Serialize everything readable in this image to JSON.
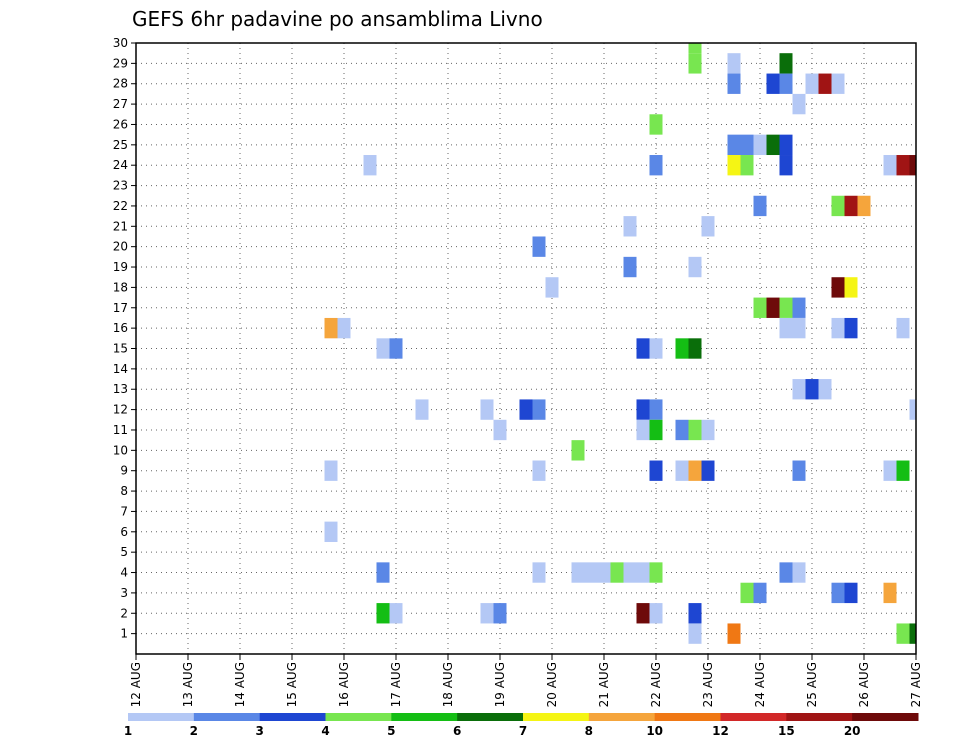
{
  "chart_data": {
    "type": "heatmap",
    "title": "GEFS 6hr padavine po ansamblima Livno",
    "xlabel": "",
    "ylabel": "",
    "x_ticks": [
      "12 AUG",
      "13 AUG",
      "14 AUG",
      "15 AUG",
      "16 AUG",
      "17 AUG",
      "18 AUG",
      "19 AUG",
      "20 AUG",
      "21 AUG",
      "22 AUG",
      "23 AUG",
      "24 AUG",
      "25 AUG",
      "26 AUG",
      "27 AUG"
    ],
    "y_ticks": [
      1,
      2,
      3,
      4,
      5,
      6,
      7,
      8,
      9,
      10,
      11,
      12,
      13,
      14,
      15,
      16,
      17,
      18,
      19,
      20,
      21,
      22,
      23,
      24,
      25,
      26,
      27,
      28,
      29,
      30
    ],
    "xlim": [
      0,
      15
    ],
    "ylim": [
      0,
      30
    ],
    "grid": true,
    "legend": {
      "placement": "bottom",
      "labels": [
        "1",
        "2",
        "3",
        "4",
        "5",
        "6",
        "7",
        "8",
        "10",
        "12",
        "15",
        "20"
      ],
      "colors": [
        "#b4c8f5",
        "#5a87e6",
        "#1e46d2",
        "#78e650",
        "#14be14",
        "#0a6e0a",
        "#f5f514",
        "#f5a53c",
        "#f07814",
        "#d22828",
        "#a01414",
        "#6e0a0a"
      ]
    },
    "cells": [
      {
        "t": 10.75,
        "m": 30,
        "v": 4
      },
      {
        "t": 10.75,
        "m": 29,
        "v": 4
      },
      {
        "t": 11.5,
        "m": 29,
        "v": 1
      },
      {
        "t": 12.5,
        "m": 29,
        "v": 6
      },
      {
        "t": 11.5,
        "m": 28,
        "v": 2
      },
      {
        "t": 12.25,
        "m": 28,
        "v": 3
      },
      {
        "t": 12.5,
        "m": 28,
        "v": 2
      },
      {
        "t": 13.0,
        "m": 28,
        "v": 1
      },
      {
        "t": 13.25,
        "m": 28,
        "v": 15
      },
      {
        "t": 13.5,
        "m": 28,
        "v": 1
      },
      {
        "t": 12.75,
        "m": 27,
        "v": 1
      },
      {
        "t": 10.0,
        "m": 26,
        "v": 4
      },
      {
        "t": 11.5,
        "m": 25,
        "v": 2
      },
      {
        "t": 11.75,
        "m": 25,
        "v": 2
      },
      {
        "t": 12.0,
        "m": 25,
        "v": 1
      },
      {
        "t": 12.25,
        "m": 25,
        "v": 6
      },
      {
        "t": 12.5,
        "m": 25,
        "v": 3
      },
      {
        "t": 4.5,
        "m": 24,
        "v": 1
      },
      {
        "t": 10.0,
        "m": 24,
        "v": 2
      },
      {
        "t": 11.5,
        "m": 24,
        "v": 7
      },
      {
        "t": 11.75,
        "m": 24,
        "v": 4
      },
      {
        "t": 12.5,
        "m": 24,
        "v": 3
      },
      {
        "t": 14.5,
        "m": 24,
        "v": 1
      },
      {
        "t": 14.75,
        "m": 24,
        "v": 15
      },
      {
        "t": 15.0,
        "m": 24,
        "v": 20
      },
      {
        "t": 12.0,
        "m": 22,
        "v": 2
      },
      {
        "t": 13.5,
        "m": 22,
        "v": 4
      },
      {
        "t": 13.75,
        "m": 22,
        "v": 15
      },
      {
        "t": 14.0,
        "m": 22,
        "v": 8
      },
      {
        "t": 9.5,
        "m": 21,
        "v": 1
      },
      {
        "t": 11.0,
        "m": 21,
        "v": 1
      },
      {
        "t": 7.75,
        "m": 20,
        "v": 2
      },
      {
        "t": 9.5,
        "m": 19,
        "v": 2
      },
      {
        "t": 10.75,
        "m": 19,
        "v": 1
      },
      {
        "t": 8.0,
        "m": 18,
        "v": 1
      },
      {
        "t": 13.5,
        "m": 18,
        "v": 20
      },
      {
        "t": 13.75,
        "m": 18,
        "v": 7
      },
      {
        "t": 12.0,
        "m": 17,
        "v": 4
      },
      {
        "t": 12.25,
        "m": 17,
        "v": 20
      },
      {
        "t": 12.5,
        "m": 17,
        "v": 4
      },
      {
        "t": 12.75,
        "m": 17,
        "v": 2
      },
      {
        "t": 3.75,
        "m": 16,
        "v": 8
      },
      {
        "t": 4.0,
        "m": 16,
        "v": 1
      },
      {
        "t": 12.5,
        "m": 16,
        "v": 1
      },
      {
        "t": 12.75,
        "m": 16,
        "v": 1
      },
      {
        "t": 13.5,
        "m": 16,
        "v": 1
      },
      {
        "t": 13.75,
        "m": 16,
        "v": 3
      },
      {
        "t": 14.75,
        "m": 16,
        "v": 1
      },
      {
        "t": 4.75,
        "m": 15,
        "v": 1
      },
      {
        "t": 5.0,
        "m": 15,
        "v": 2
      },
      {
        "t": 9.75,
        "m": 15,
        "v": 3
      },
      {
        "t": 10.0,
        "m": 15,
        "v": 1
      },
      {
        "t": 10.5,
        "m": 15,
        "v": 5
      },
      {
        "t": 10.75,
        "m": 15,
        "v": 6
      },
      {
        "t": 12.75,
        "m": 13,
        "v": 1
      },
      {
        "t": 13.0,
        "m": 13,
        "v": 3
      },
      {
        "t": 13.25,
        "m": 13,
        "v": 1
      },
      {
        "t": 5.5,
        "m": 12,
        "v": 1
      },
      {
        "t": 6.75,
        "m": 12,
        "v": 1
      },
      {
        "t": 7.5,
        "m": 12,
        "v": 3
      },
      {
        "t": 7.75,
        "m": 12,
        "v": 2
      },
      {
        "t": 9.75,
        "m": 12,
        "v": 3
      },
      {
        "t": 10.0,
        "m": 12,
        "v": 2
      },
      {
        "t": 15.0,
        "m": 12,
        "v": 1
      },
      {
        "t": 7.0,
        "m": 11,
        "v": 1
      },
      {
        "t": 9.75,
        "m": 11,
        "v": 1
      },
      {
        "t": 10.0,
        "m": 11,
        "v": 5
      },
      {
        "t": 10.5,
        "m": 11,
        "v": 2
      },
      {
        "t": 10.75,
        "m": 11,
        "v": 4
      },
      {
        "t": 11.0,
        "m": 11,
        "v": 1
      },
      {
        "t": 8.5,
        "m": 10,
        "v": 4
      },
      {
        "t": 3.75,
        "m": 9,
        "v": 1
      },
      {
        "t": 7.75,
        "m": 9,
        "v": 1
      },
      {
        "t": 10.0,
        "m": 9,
        "v": 3
      },
      {
        "t": 10.5,
        "m": 9,
        "v": 1
      },
      {
        "t": 10.75,
        "m": 9,
        "v": 8
      },
      {
        "t": 11.0,
        "m": 9,
        "v": 3
      },
      {
        "t": 12.75,
        "m": 9,
        "v": 2
      },
      {
        "t": 14.5,
        "m": 9,
        "v": 1
      },
      {
        "t": 14.75,
        "m": 9,
        "v": 5
      },
      {
        "t": 3.75,
        "m": 6,
        "v": 1
      },
      {
        "t": 4.75,
        "m": 4,
        "v": 2
      },
      {
        "t": 7.75,
        "m": 4,
        "v": 1
      },
      {
        "t": 8.5,
        "m": 4,
        "v": 1
      },
      {
        "t": 8.75,
        "m": 4,
        "v": 1
      },
      {
        "t": 9.0,
        "m": 4,
        "v": 1
      },
      {
        "t": 9.25,
        "m": 4,
        "v": 4
      },
      {
        "t": 9.5,
        "m": 4,
        "v": 1
      },
      {
        "t": 9.75,
        "m": 4,
        "v": 1
      },
      {
        "t": 10.0,
        "m": 4,
        "v": 4
      },
      {
        "t": 12.5,
        "m": 4,
        "v": 2
      },
      {
        "t": 12.75,
        "m": 4,
        "v": 1
      },
      {
        "t": 11.75,
        "m": 3,
        "v": 4
      },
      {
        "t": 12.0,
        "m": 3,
        "v": 2
      },
      {
        "t": 13.5,
        "m": 3,
        "v": 2
      },
      {
        "t": 13.75,
        "m": 3,
        "v": 3
      },
      {
        "t": 14.5,
        "m": 3,
        "v": 8
      },
      {
        "t": 4.75,
        "m": 2,
        "v": 5
      },
      {
        "t": 5.0,
        "m": 2,
        "v": 1
      },
      {
        "t": 6.75,
        "m": 2,
        "v": 1
      },
      {
        "t": 7.0,
        "m": 2,
        "v": 2
      },
      {
        "t": 9.75,
        "m": 2,
        "v": 20
      },
      {
        "t": 10.0,
        "m": 2,
        "v": 1
      },
      {
        "t": 10.75,
        "m": 2,
        "v": 3
      },
      {
        "t": 10.75,
        "m": 1,
        "v": 1
      },
      {
        "t": 11.5,
        "m": 1,
        "v": 10
      },
      {
        "t": 14.75,
        "m": 1,
        "v": 4
      },
      {
        "t": 15.0,
        "m": 1,
        "v": 6
      }
    ]
  }
}
